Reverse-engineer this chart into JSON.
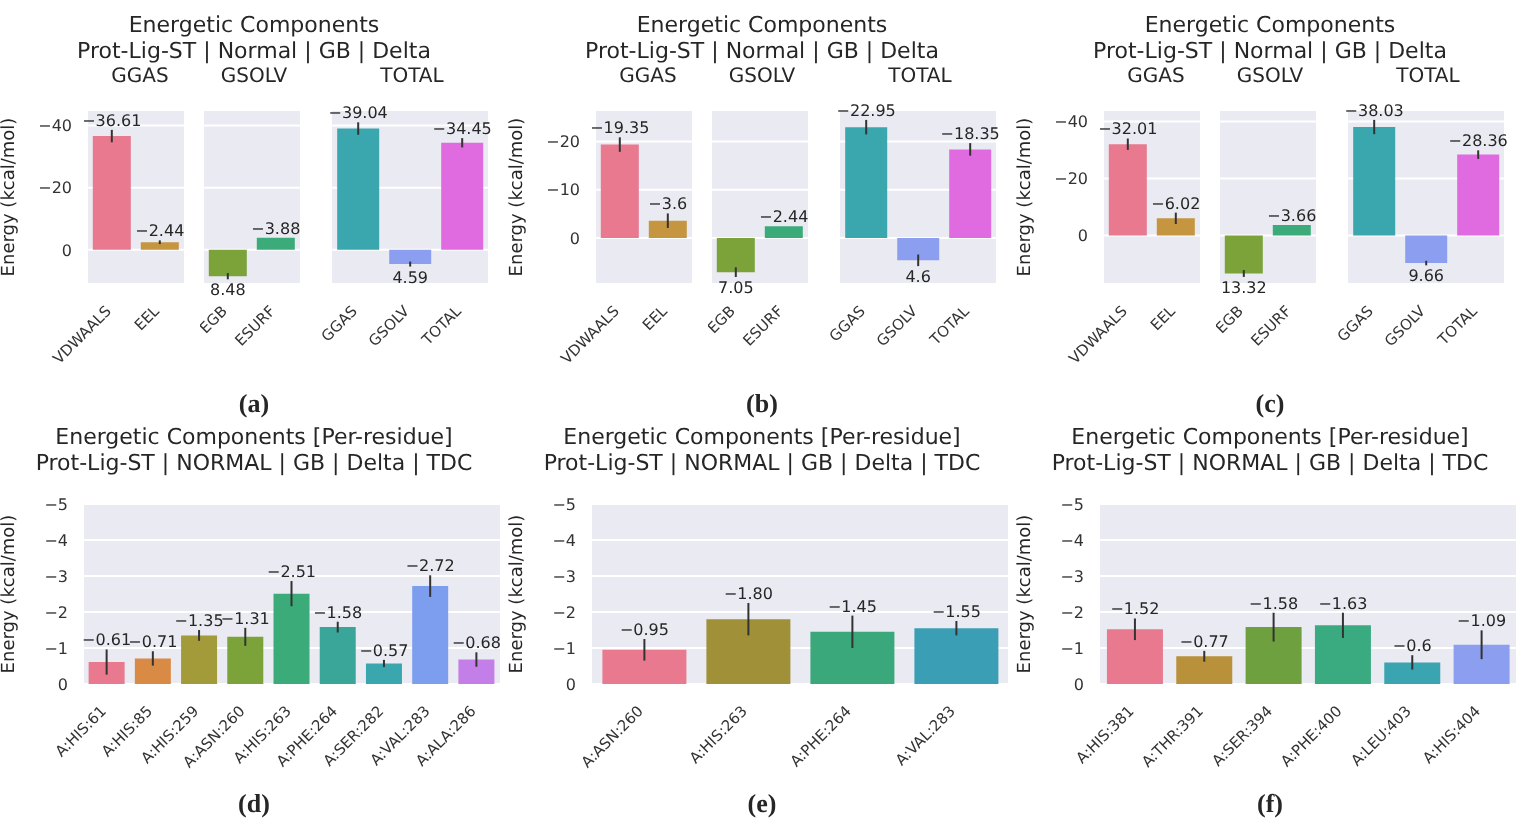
{
  "chart_data": [
    {
      "type": "other",
      "title": "Energetic Components",
      "subtitle": "Prot-Lig-ST | Normal | GB | Delta",
      "annotations": [
        "(a)"
      ]
    },
    {
      "type": "bar",
      "title": "GGAS",
      "ylabel": "Energy (kcal/mol)",
      "categories": [
        "VDWAALS",
        "EEL"
      ],
      "values": [
        -36.61,
        -2.44
      ],
      "colors": [
        "#e8798f",
        "#c5963f"
      ],
      "errors": [
        2,
        0.6
      ],
      "value_labels": [
        "−36.61",
        "−2.44"
      ],
      "ylim": [
        11,
        -45
      ],
      "yticks": [
        {
          "value": 0,
          "label": "0"
        },
        {
          "value": -20,
          "label": "−20"
        },
        {
          "value": -40,
          "label": "−40"
        }
      ],
      "grid": "y"
    },
    {
      "type": "bar",
      "title": "GSOLV",
      "categories": [
        "EGB",
        "ESURF"
      ],
      "values": [
        8.48,
        -3.88
      ],
      "colors": [
        "#7ca33a",
        "#3cab7a"
      ],
      "errors": [
        1,
        null
      ],
      "value_labels": [
        "8.48",
        "−3.88"
      ],
      "ylim": [
        11,
        -45
      ],
      "yticks": [
        0,
        -20,
        -40
      ],
      "tick_labels": "x",
      "grid": "y"
    },
    {
      "type": "bar",
      "title": "TOTAL",
      "categories": [
        "GGAS",
        "GSOLV",
        "TOTAL"
      ],
      "values": [
        -39.04,
        4.59,
        -34.45
      ],
      "colors": [
        "#3aa6ae",
        "#8c9ef0",
        "#e06ae0"
      ],
      "errors": [
        2,
        0.8,
        1.5
      ],
      "value_labels": [
        "−39.04",
        "4.59",
        "−34.45"
      ],
      "ylim": [
        11,
        -45
      ],
      "yticks": [
        0,
        -20,
        -40
      ],
      "tick_labels": "x",
      "grid": "y"
    },
    {
      "type": "other",
      "title": "Energetic Components",
      "subtitle": "Prot-Lig-ST | Normal | GB | Delta",
      "annotations": [
        "(b)"
      ]
    },
    {
      "type": "bar",
      "title": "GGAS",
      "ylabel": "Energy (kcal/mol)",
      "categories": [
        "VDWAALS",
        "EEL"
      ],
      "values": [
        -19.35,
        -3.6
      ],
      "colors": [
        "#e8798f",
        "#c5963f"
      ],
      "errors": [
        1.5,
        1.5
      ],
      "value_labels": [
        "−19.35",
        "−3.6"
      ],
      "ylim": [
        9.5,
        -26.5
      ],
      "yticks": [
        {
          "value": 0,
          "label": "0"
        },
        {
          "value": -10,
          "label": "−10"
        },
        {
          "value": -20,
          "label": "−20"
        }
      ],
      "grid": "y"
    },
    {
      "type": "bar",
      "title": "GSOLV",
      "categories": [
        "EGB",
        "ESURF"
      ],
      "values": [
        7.05,
        -2.44
      ],
      "colors": [
        "#7ca33a",
        "#3cab7a"
      ],
      "errors": [
        1,
        null
      ],
      "value_labels": [
        "7.05",
        "−2.44"
      ],
      "ylim": [
        9.5,
        -26.5
      ],
      "yticks": [
        0,
        -10,
        -20
      ],
      "tick_labels": "x",
      "grid": "y"
    },
    {
      "type": "bar",
      "title": "TOTAL",
      "categories": [
        "GGAS",
        "GSOLV",
        "TOTAL"
      ],
      "values": [
        -22.95,
        4.6,
        -18.35
      ],
      "colors": [
        "#3aa6ae",
        "#8c9ef0",
        "#e06ae0"
      ],
      "errors": [
        1.5,
        1.2,
        1.3
      ],
      "value_labels": [
        "−22.95",
        "4.6",
        "−18.35"
      ],
      "ylim": [
        9.5,
        -26.5
      ],
      "yticks": [
        0,
        -10,
        -20
      ],
      "tick_labels": "x",
      "grid": "y"
    },
    {
      "type": "other",
      "title": "Energetic Components",
      "subtitle": "Prot-Lig-ST | Normal | GB | Delta",
      "annotations": [
        "(c)"
      ]
    },
    {
      "type": "bar",
      "title": "GGAS",
      "ylabel": "Energy (kcal/mol)",
      "categories": [
        "VDWAALS",
        "EEL"
      ],
      "values": [
        -32.01,
        -6.02
      ],
      "colors": [
        "#e8798f",
        "#c5963f"
      ],
      "errors": [
        2,
        2
      ],
      "value_labels": [
        "−32.01",
        "−6.02"
      ],
      "ylim": [
        17,
        -44
      ],
      "yticks": [
        {
          "value": 0,
          "label": "0"
        },
        {
          "value": -20,
          "label": "−20"
        },
        {
          "value": -40,
          "label": "−40"
        }
      ],
      "grid": "y"
    },
    {
      "type": "bar",
      "title": "GSOLV",
      "categories": [
        "EGB",
        "ESURF"
      ],
      "values": [
        13.32,
        -3.66
      ],
      "colors": [
        "#7ca33a",
        "#3cab7a"
      ],
      "errors": [
        1.2,
        null
      ],
      "value_labels": [
        "13.32",
        "−3.66"
      ],
      "ylim": [
        17,
        -44
      ],
      "yticks": [
        0,
        -20,
        -40
      ],
      "tick_labels": "x",
      "grid": "y"
    },
    {
      "type": "bar",
      "title": "TOTAL",
      "categories": [
        "GGAS",
        "GSOLV",
        "TOTAL"
      ],
      "values": [
        -38.03,
        9.66,
        -28.36
      ],
      "colors": [
        "#3aa6ae",
        "#8c9ef0",
        "#e06ae0"
      ],
      "errors": [
        2.5,
        0.8,
        1.5
      ],
      "value_labels": [
        "−38.03",
        "9.66",
        "−28.36"
      ],
      "ylim": [
        17,
        -44
      ],
      "yticks": [
        0,
        -20,
        -40
      ],
      "tick_labels": "x",
      "grid": "y"
    },
    {
      "type": "bar",
      "title": "Energetic Components [Per-residue]",
      "subtitle": "Prot-Lig-ST | NORMAL | GB | Delta | TDC",
      "ylabel": "Energy (kcal/mol)",
      "annotations": [
        "(d)"
      ],
      "categories": [
        "A:HIS:61",
        "A:HIS:85",
        "A:HIS:259",
        "A:ASN:260",
        "A:HIS:263",
        "A:PHE:264",
        "A:SER:282",
        "A:VAL:283",
        "A:ALA:286"
      ],
      "values": [
        -0.61,
        -0.71,
        -1.35,
        -1.31,
        -2.51,
        -1.58,
        -0.57,
        -2.72,
        -0.68
      ],
      "colors": [
        "#e8798f",
        "#d98a45",
        "#a39a3a",
        "#7ca33a",
        "#3cab7a",
        "#3aa69a",
        "#3aa6ae",
        "#7d9eee",
        "#c47ee8"
      ],
      "errors": [
        0.35,
        0.2,
        0.15,
        0.25,
        0.35,
        0.15,
        0.1,
        0.3,
        0.2
      ],
      "value_labels": [
        "−0.61",
        "−0.71",
        "−1.35",
        "−1.31",
        "−2.51",
        "−1.58",
        "−0.57",
        "−2.72",
        "−0.68"
      ],
      "ylim": [
        0,
        -5
      ],
      "yticks": [
        {
          "value": 0,
          "label": "0"
        },
        {
          "value": -1,
          "label": "−1"
        },
        {
          "value": -2,
          "label": "−2"
        },
        {
          "value": -3,
          "label": "−3"
        },
        {
          "value": -4,
          "label": "−4"
        },
        {
          "value": -5,
          "label": "−5"
        }
      ],
      "grid": "y"
    },
    {
      "type": "bar",
      "title": "Energetic Components [Per-residue]",
      "subtitle": "Prot-Lig-ST | NORMAL | GB | Delta | TDC",
      "ylabel": "Energy (kcal/mol)",
      "annotations": [
        "(e)"
      ],
      "categories": [
        "A:ASN:260",
        "A:HIS:263",
        "A:PHE:264",
        "A:VAL:283"
      ],
      "values": [
        -0.95,
        -1.8,
        -1.45,
        -1.55
      ],
      "colors": [
        "#e8798f",
        "#a09038",
        "#3aa87a",
        "#3a9fb5"
      ],
      "errors": [
        0.3,
        0.45,
        0.45,
        0.2
      ],
      "value_labels": [
        "−0.95",
        "−1.80",
        "−1.45",
        "−1.55"
      ],
      "ylim": [
        0,
        -5
      ],
      "yticks": [
        {
          "value": 0,
          "label": "0"
        },
        {
          "value": -1,
          "label": "−1"
        },
        {
          "value": -2,
          "label": "−2"
        },
        {
          "value": -3,
          "label": "−3"
        },
        {
          "value": -4,
          "label": "−4"
        },
        {
          "value": -5,
          "label": "−5"
        }
      ],
      "grid": "y"
    },
    {
      "type": "bar",
      "title": "Energetic Components [Per-residue]",
      "subtitle": "Prot-Lig-ST | NORMAL | GB | Delta | TDC",
      "ylabel": "Energy (kcal/mol)",
      "annotations": [
        "(f)"
      ],
      "categories": [
        "A:HIS:381",
        "A:THR:391",
        "A:SER:394",
        "A:PHE:400",
        "A:LEU:403",
        "A:HIS:404"
      ],
      "values": [
        -1.52,
        -0.77,
        -1.58,
        -1.63,
        -0.6,
        -1.09
      ],
      "colors": [
        "#e8798f",
        "#b8913a",
        "#6ea040",
        "#3aab80",
        "#3aa5b0",
        "#8c9ef0"
      ],
      "errors": [
        0.3,
        0.15,
        0.4,
        0.35,
        0.2,
        0.4
      ],
      "value_labels": [
        "−1.52",
        "−0.77",
        "−1.58",
        "−1.63",
        "−0.6",
        "−1.09"
      ],
      "ylim": [
        0,
        -5
      ],
      "yticks": [
        {
          "value": 0,
          "label": "0"
        },
        {
          "value": -1,
          "label": "−1"
        },
        {
          "value": -2,
          "label": "−2"
        },
        {
          "value": -3,
          "label": "−3"
        },
        {
          "value": -4,
          "label": "−4"
        },
        {
          "value": -5,
          "label": "−5"
        }
      ],
      "grid": "y"
    }
  ]
}
